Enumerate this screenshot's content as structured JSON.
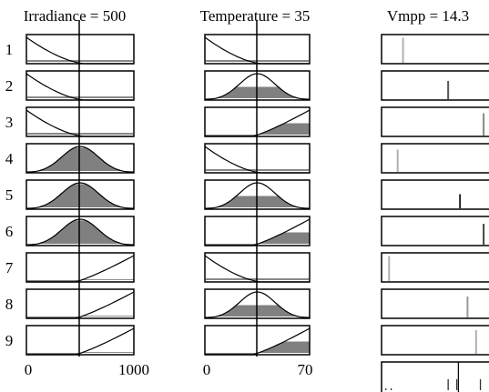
{
  "columns": [
    {
      "title": "Irradiance = 500",
      "axis_labels": [
        "0",
        "1000"
      ]
    },
    {
      "title": "Temperature = 35",
      "axis_labels": [
        "0",
        "70"
      ]
    },
    {
      "title": "Vmpp = 14.3"
    }
  ],
  "rules": [
    "1",
    "2",
    "3",
    "4",
    "5",
    "6",
    "7",
    "8",
    "9"
  ],
  "input_values": {
    "irradiance": 500,
    "temperature": 35
  },
  "input_ranges": {
    "irradiance": [
      0,
      1000
    ],
    "temperature": [
      0,
      70
    ]
  },
  "rule_memberships": [
    {
      "irradiance": "low",
      "temperature": "low",
      "irradiance_fire": 0.02,
      "temperature_fire": 0.02
    },
    {
      "irradiance": "low",
      "temperature": "medium",
      "irradiance_fire": 0.02,
      "temperature_fire": 0.5
    },
    {
      "irradiance": "low",
      "temperature": "high",
      "irradiance_fire": 0.02,
      "temperature_fire": 0.5
    },
    {
      "irradiance": "medium",
      "temperature": "low",
      "irradiance_fire": 0.95,
      "temperature_fire": 0.02
    },
    {
      "irradiance": "medium",
      "temperature": "medium",
      "irradiance_fire": 0.95,
      "temperature_fire": 0.5
    },
    {
      "irradiance": "medium",
      "temperature": "high",
      "irradiance_fire": 0.95,
      "temperature_fire": 0.5
    },
    {
      "irradiance": "high",
      "temperature": "low",
      "irradiance_fire": 0.1,
      "temperature_fire": 0.02
    },
    {
      "irradiance": "high",
      "temperature": "medium",
      "irradiance_fire": 0.1,
      "temperature_fire": 0.5
    },
    {
      "irradiance": "high",
      "temperature": "high",
      "irradiance_fire": 0.1,
      "temperature_fire": 0.5
    }
  ],
  "output_spikes": [
    {
      "pos": 0.2,
      "strength": 0.95,
      "color": "#b0b0b0"
    },
    {
      "pos": 0.62,
      "strength": 0.7,
      "color": "#555555"
    },
    {
      "pos": 0.95,
      "strength": 0.85,
      "color": "#888888"
    },
    {
      "pos": 0.15,
      "strength": 0.85,
      "color": "#b0b0b0"
    },
    {
      "pos": 0.73,
      "strength": 0.55,
      "color": "#222222"
    },
    {
      "pos": 0.95,
      "strength": 0.8,
      "color": "#444444"
    },
    {
      "pos": 0.07,
      "strength": 0.95,
      "color": "#b0b0b0"
    },
    {
      "pos": 0.8,
      "strength": 0.8,
      "color": "#999999"
    },
    {
      "pos": 0.88,
      "strength": 0.9,
      "color": "#b0b0b0"
    }
  ],
  "aggregate_spikes": [
    0.04,
    0.09,
    0.62,
    0.7,
    0.92
  ],
  "aggregate_output": 14.3,
  "colors": {
    "fill": "#808080",
    "stroke": "#000000"
  }
}
